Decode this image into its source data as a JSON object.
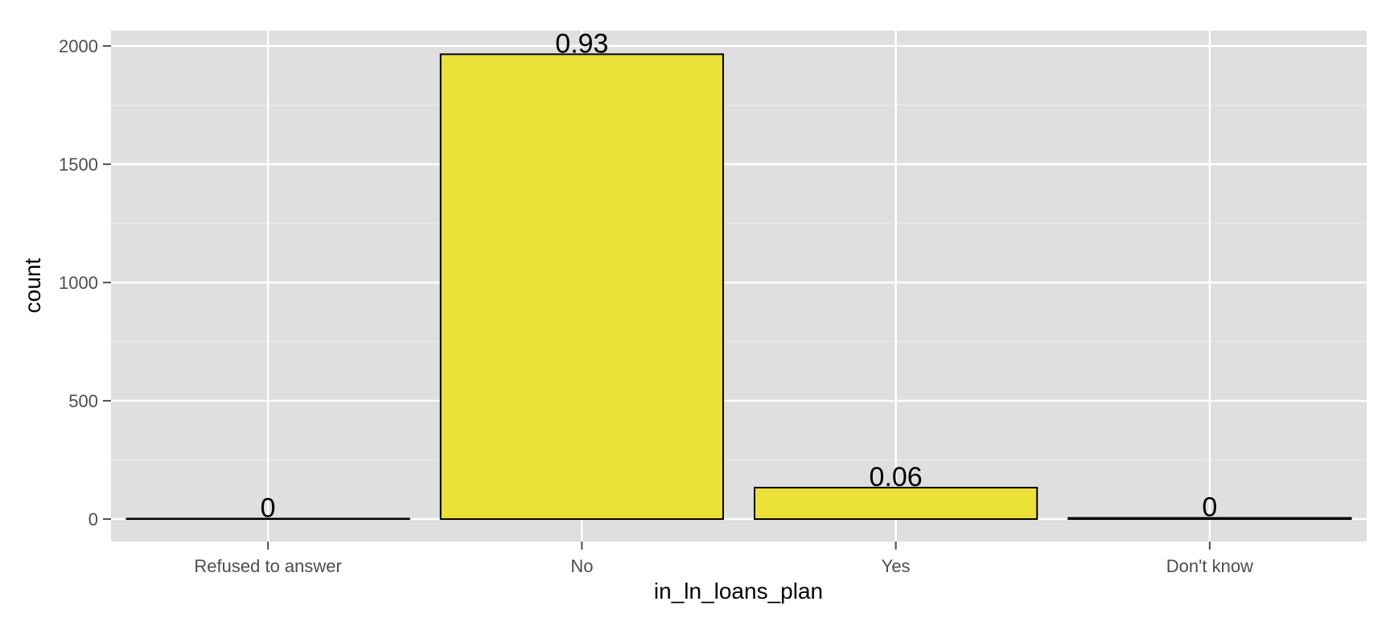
{
  "chart_data": {
    "type": "bar",
    "categories": [
      "Refused to answer",
      "No",
      "Yes",
      "Don't know"
    ],
    "values": [
      2,
      1965,
      133,
      5
    ],
    "labels": [
      "0",
      "0.93",
      "0.06",
      "0"
    ],
    "xlabel": "in_ln_loans_plan",
    "ylabel": "count",
    "ylim": [
      -95,
      2065
    ],
    "yticks": [
      0,
      500,
      1000,
      1500,
      2000
    ],
    "grid": true,
    "colors": {
      "bar_fill": "#EBE038",
      "bar_stroke": "#000000",
      "panel_bg": "#DFDFDF",
      "grid_major": "#FFFFFF",
      "grid_minor": "#EBEBEB",
      "tick_text": "#4D4D4D"
    }
  }
}
